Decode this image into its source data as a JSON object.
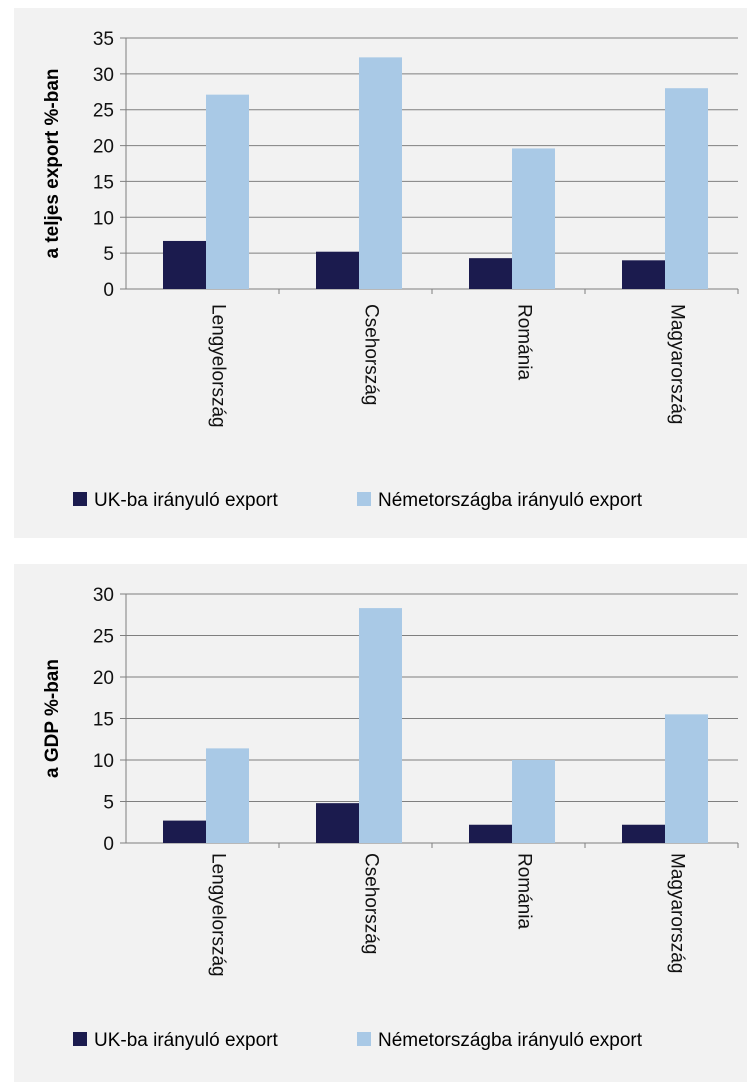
{
  "chart_data": [
    {
      "type": "bar",
      "categories": [
        "Lengyelország",
        "Csehország",
        "Románia",
        "Magyarország"
      ],
      "series": [
        {
          "name": "UK-ba irányuló export",
          "values": [
            6.7,
            5.2,
            4.3,
            4.0
          ]
        },
        {
          "name": "Németországba irányuló export",
          "values": [
            27.1,
            32.3,
            19.6,
            28.0
          ]
        }
      ],
      "title": "",
      "xlabel": "",
      "ylabel": "a teljes export %-ban",
      "ylim": [
        0,
        35
      ],
      "yticks": [
        0,
        5,
        10,
        15,
        20,
        25,
        30,
        35
      ],
      "grid": true,
      "legend": "bottom"
    },
    {
      "type": "bar",
      "categories": [
        "Lengyelország",
        "Csehország",
        "Románia",
        "Magyarország"
      ],
      "series": [
        {
          "name": "UK-ba irányuló export",
          "values": [
            2.7,
            4.8,
            2.2,
            2.2
          ]
        },
        {
          "name": "Németországba irányuló export",
          "values": [
            11.4,
            28.3,
            10.0,
            15.5
          ]
        }
      ],
      "title": "",
      "xlabel": "",
      "ylabel": "a GDP %-ban",
      "ylim": [
        0,
        30
      ],
      "yticks": [
        0,
        5,
        10,
        15,
        20,
        25,
        30
      ],
      "grid": true,
      "legend": "bottom"
    }
  ],
  "colors": {
    "uk": "#1b1b4e",
    "de": "#a9c9e6",
    "grid": "#7f7f7f",
    "panel_bg": "#f2f2f2"
  }
}
